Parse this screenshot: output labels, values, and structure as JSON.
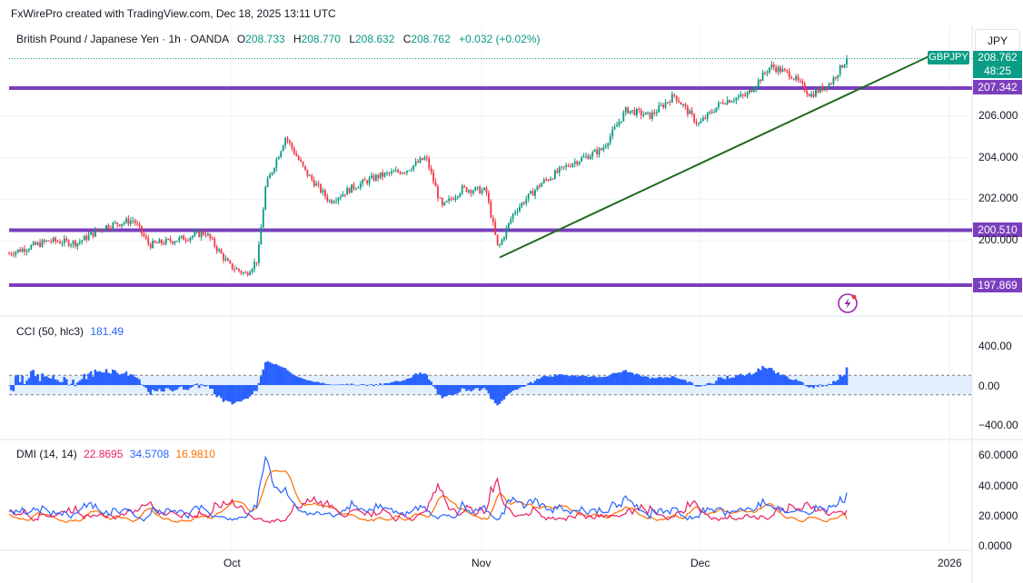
{
  "header": {
    "credit": "FxWirePro created with TradingView.com, Dec 18, 2025 13:11 UTC"
  },
  "symbol_bar": {
    "instrument": "British Pound / Japanese Yen · 1h · OANDA",
    "o_label": "O",
    "o_value": "208.733",
    "h_label": "H",
    "h_value": "208.770",
    "l_label": "L",
    "l_value": "208.632",
    "c_label": "C",
    "c_value": "208.762",
    "change": "+0.032 (+0.02%)"
  },
  "currency_button": "JPY",
  "price_panel": {
    "symbol_tag": "GBPJPY",
    "last_price": "208.762",
    "countdown": "48:25",
    "ticks": [
      "206.000",
      "204.000",
      "202.000",
      "200.000"
    ],
    "levels": [
      {
        "label": "207.342",
        "value": 207.342
      },
      {
        "label": "200.510",
        "value": 200.51
      },
      {
        "label": "197.869",
        "value": 197.869
      }
    ]
  },
  "cci_panel": {
    "title": "CCI (50, hlc3)",
    "value": "181.49",
    "ticks": [
      "400.00",
      "0.00",
      "−400.00"
    ]
  },
  "dmi_panel": {
    "title": "DMI (14, 14)",
    "v1": "22.8695",
    "v2": "34.5708",
    "v3": "16.9810",
    "ticks": [
      "60.0000",
      "40.0000",
      "20.0000",
      "0.0000"
    ]
  },
  "time_axis": [
    "Oct",
    "Nov",
    "Dec",
    "2026"
  ],
  "colors": {
    "up": "#089981",
    "down": "#f23645",
    "level": "#7b3fbd",
    "trend": "#1e6b1e",
    "cci": "#2962ff",
    "dmi_plus": "#2962ff",
    "dmi_minus": "#e91e63",
    "adx": "#ff6d00",
    "tag_bg": "#0a9d85",
    "level_tag_bg": "#7b3fbd"
  },
  "chart_data": [
    {
      "type": "candlestick",
      "title": "British Pound / Japanese Yen · 1h · OANDA",
      "ylim": [
        197.5,
        208.9
      ],
      "x_labels": [
        "Oct",
        "Nov",
        "Dec",
        "2026"
      ],
      "anchor_path": [
        {
          "x": 0.0,
          "y": 199.4
        },
        {
          "x": 0.05,
          "y": 200.0
        },
        {
          "x": 0.085,
          "y": 199.9
        },
        {
          "x": 0.12,
          "y": 200.7
        },
        {
          "x": 0.155,
          "y": 201.0
        },
        {
          "x": 0.175,
          "y": 199.8
        },
        {
          "x": 0.215,
          "y": 200.1
        },
        {
          "x": 0.245,
          "y": 200.4
        },
        {
          "x": 0.275,
          "y": 198.8
        },
        {
          "x": 0.295,
          "y": 198.4
        },
        {
          "x": 0.31,
          "y": 199.1
        },
        {
          "x": 0.32,
          "y": 202.6
        },
        {
          "x": 0.345,
          "y": 205.0
        },
        {
          "x": 0.37,
          "y": 203.3
        },
        {
          "x": 0.4,
          "y": 201.9
        },
        {
          "x": 0.43,
          "y": 202.6
        },
        {
          "x": 0.46,
          "y": 203.1
        },
        {
          "x": 0.495,
          "y": 203.4
        },
        {
          "x": 0.52,
          "y": 204.0
        },
        {
          "x": 0.54,
          "y": 201.6
        },
        {
          "x": 0.565,
          "y": 202.5
        },
        {
          "x": 0.595,
          "y": 202.4
        },
        {
          "x": 0.61,
          "y": 199.6
        },
        {
          "x": 0.63,
          "y": 201.4
        },
        {
          "x": 0.665,
          "y": 202.8
        },
        {
          "x": 0.7,
          "y": 203.7
        },
        {
          "x": 0.74,
          "y": 204.4
        },
        {
          "x": 0.77,
          "y": 206.3
        },
        {
          "x": 0.8,
          "y": 206.0
        },
        {
          "x": 0.83,
          "y": 207.0
        },
        {
          "x": 0.86,
          "y": 205.6
        },
        {
          "x": 0.89,
          "y": 206.7
        },
        {
          "x": 0.92,
          "y": 207.0
        },
        {
          "x": 0.95,
          "y": 208.4
        },
        {
          "x": 0.975,
          "y": 208.0
        },
        {
          "x": 1.0,
          "y": 207.0
        },
        {
          "x": 1.025,
          "y": 207.6
        },
        {
          "x": 1.045,
          "y": 208.762
        }
      ],
      "horizontal_levels": [
        207.342,
        200.51,
        197.869
      ],
      "trendline": [
        {
          "x": 0.612,
          "y": 199.2
        },
        {
          "x": 1.155,
          "y": 209.0
        }
      ]
    },
    {
      "type": "bar",
      "series": [
        {
          "name": "CCI (50, hlc3)",
          "last": 181.49
        }
      ],
      "ylim": [
        -450,
        450
      ],
      "band": [
        -100,
        100
      ]
    },
    {
      "type": "line",
      "series": [
        {
          "name": "DMI (14, 14)",
          "last": 22.8695
        },
        {
          "last": 34.5708
        },
        {
          "last": 16.981
        }
      ],
      "ylim": [
        0,
        60
      ]
    }
  ]
}
